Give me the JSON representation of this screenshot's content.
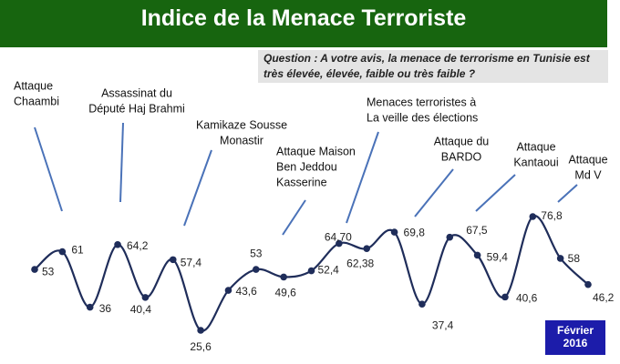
{
  "chart_data": {
    "type": "line",
    "title": "Indice de la Menace Terroriste",
    "subtitle": "Question : A votre avis, la menace de terrorisme en Tunisie est très élevée, élevée, faible ou très faible ?",
    "date_note": [
      "Février",
      "2016"
    ],
    "categories": [
      null,
      null,
      null,
      null,
      null,
      null,
      null,
      null,
      null,
      null,
      null,
      null,
      null,
      null,
      null,
      null,
      null,
      null,
      null,
      null,
      null
    ],
    "series": [
      {
        "name": null,
        "color": "#1f2d5a",
        "values": [
          53,
          61,
          36,
          64.2,
          40.4,
          57.4,
          25.6,
          43.6,
          53,
          49.6,
          52.4,
          64.7,
          62.38,
          69.8,
          37.4,
          67.5,
          59.4,
          40.6,
          76.8,
          58,
          46.2
        ],
        "value_labels": [
          "53",
          "61",
          "36",
          "64,2",
          "40,4",
          "57,4",
          "25,6",
          "43,6",
          "53",
          "49,6",
          "52,4",
          "64,70",
          "62,38",
          "69,8",
          "37,4",
          "67,5",
          "59,4",
          "40,6",
          "76,8",
          "58",
          "46,2"
        ]
      }
    ],
    "annotations": [
      [
        "Attaque",
        "Chaambi"
      ],
      [
        "Assassinat du",
        "Député Haj Brahmi"
      ],
      [
        "Kamikaze Sousse",
        "Monastir"
      ],
      [
        "Attaque Maison",
        "Ben Jeddou",
        "Kasserine"
      ],
      [
        "Menaces terroristes à",
        "La veille  des élections"
      ],
      [
        "Attaque du",
        "BARDO"
      ],
      [
        "Attaque",
        "Kantaoui"
      ],
      [
        "Attaque",
        "Md V"
      ]
    ]
  }
}
